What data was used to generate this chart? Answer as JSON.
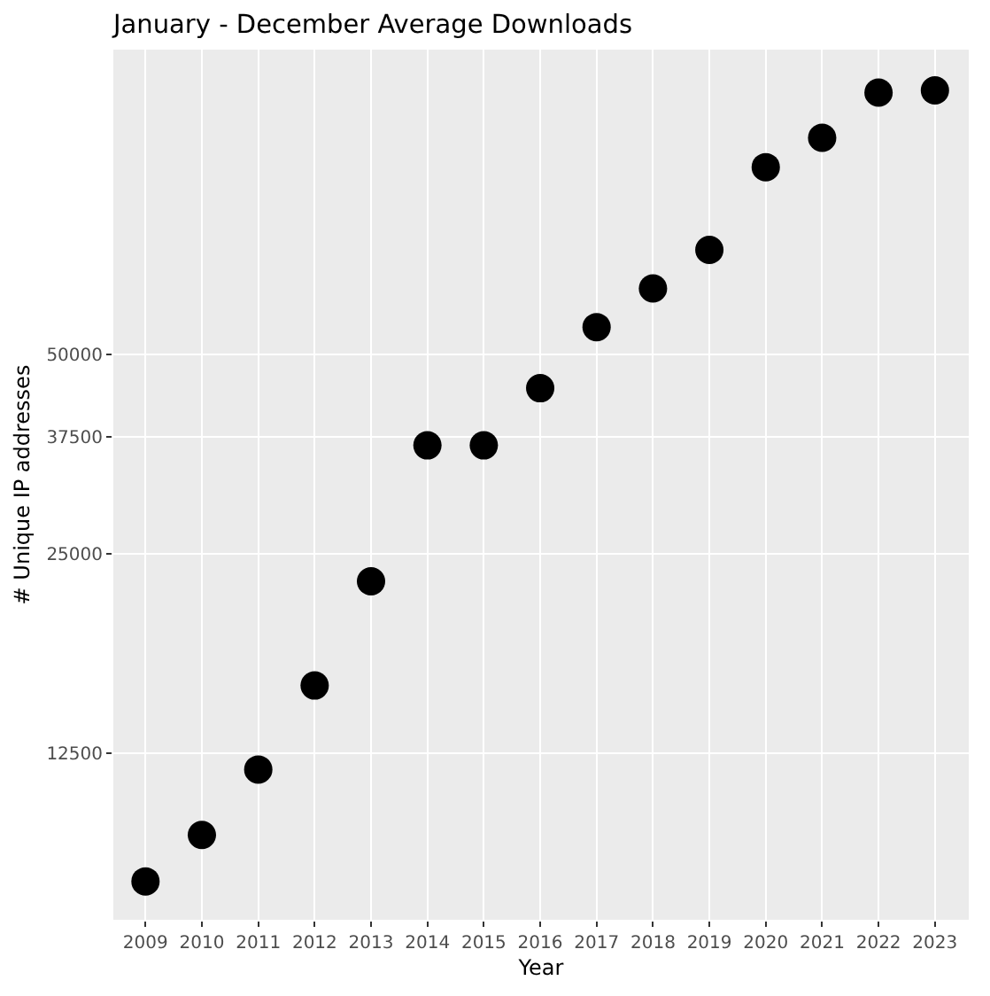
{
  "chart_data": {
    "type": "scatter",
    "title": "January - December Average Downloads",
    "xlabel": "Year",
    "ylabel": "# Unique IP addresses",
    "categories": [
      "2009",
      "2010",
      "2011",
      "2012",
      "2013",
      "2014",
      "2015",
      "2016",
      "2017",
      "2018",
      "2019",
      "2020",
      "2021",
      "2022",
      "2023"
    ],
    "series": [
      {
        "color": "#000000",
        "values": [
          8000,
          9400,
          11800,
          15800,
          22700,
          36400,
          36400,
          44400,
          54900,
          62800,
          71800,
          95700,
          106000,
          124000,
          125000
        ]
      }
    ],
    "log": true,
    "ylim": [
      7000,
      144000
    ],
    "yticks": [
      12500,
      25000,
      37500,
      50000
    ],
    "grid": true,
    "marker": "circle"
  }
}
